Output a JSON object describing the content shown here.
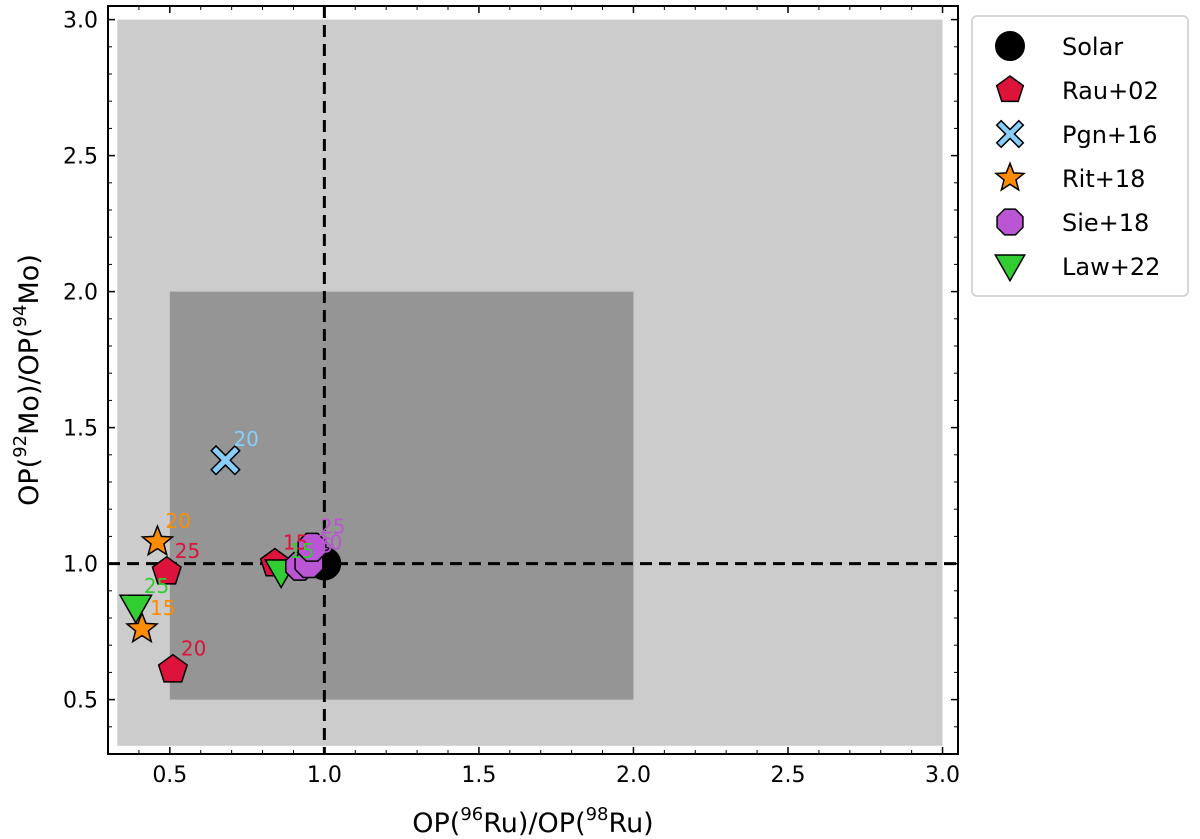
{
  "chart_data": {
    "type": "scatter",
    "xlabel": {
      "pre": "OP(",
      "sup1": "96",
      "mid": "Ru)/OP(",
      "sup2": "98",
      "post": "Ru)"
    },
    "ylabel": {
      "pre": "OP(",
      "sup1": "92",
      "mid": "Mo)/OP(",
      "sup2": "94",
      "post": "Mo)"
    },
    "xlim": [
      0.3,
      3.05
    ],
    "ylim": [
      0.3,
      3.05
    ],
    "xticks": [
      "0.5",
      "1.0",
      "1.5",
      "2.0",
      "2.5",
      "3.0"
    ],
    "yticks": [
      "0.5",
      "1.0",
      "1.5",
      "2.0",
      "2.5",
      "3.0"
    ],
    "grid": false,
    "legend_position": "outside-right-top",
    "regions": [
      {
        "x": [
          0.33,
          3.0
        ],
        "y": [
          0.33,
          3.0
        ],
        "color": "#cccccc"
      },
      {
        "x": [
          0.5,
          2.0
        ],
        "y": [
          0.5,
          2.0
        ],
        "color": "#959595"
      }
    ],
    "reference_lines": {
      "x": 1.0,
      "y": 1.0,
      "style": "dashed"
    },
    "series": [
      {
        "name": "Solar",
        "marker": "circle",
        "color": "#000000",
        "points": [
          {
            "x": 1.0,
            "y": 1.0,
            "label": ""
          }
        ]
      },
      {
        "name": "Rau+02",
        "marker": "pentagon",
        "color": "#dc143c",
        "points": [
          {
            "x": 0.84,
            "y": 1.0,
            "label": "15"
          },
          {
            "x": 0.51,
            "y": 0.61,
            "label": "20"
          },
          {
            "x": 0.49,
            "y": 0.97,
            "label": "25"
          }
        ]
      },
      {
        "name": "Pgn+16",
        "marker": "x",
        "color": "#87cefa",
        "points": [
          {
            "x": 0.68,
            "y": 1.38,
            "label": "20"
          }
        ]
      },
      {
        "name": "Rit+18",
        "marker": "star",
        "color": "#ff8c00",
        "points": [
          {
            "x": 0.41,
            "y": 0.76,
            "label": "15"
          },
          {
            "x": 0.46,
            "y": 1.08,
            "label": "20"
          }
        ]
      },
      {
        "name": "Sie+18",
        "marker": "octagon",
        "color": "#ba55d3",
        "points": [
          {
            "x": 0.92,
            "y": 0.99,
            "label": "15"
          },
          {
            "x": 0.95,
            "y": 1.0,
            "label": "20"
          },
          {
            "x": 0.96,
            "y": 1.06,
            "label": "25"
          }
        ]
      },
      {
        "name": "Law+22",
        "marker": "triangle-down",
        "color": "#32cd32",
        "points": [
          {
            "x": 0.86,
            "y": 0.97,
            "label": "15"
          },
          {
            "x": 0.39,
            "y": 0.84,
            "label": "25"
          }
        ]
      }
    ]
  }
}
